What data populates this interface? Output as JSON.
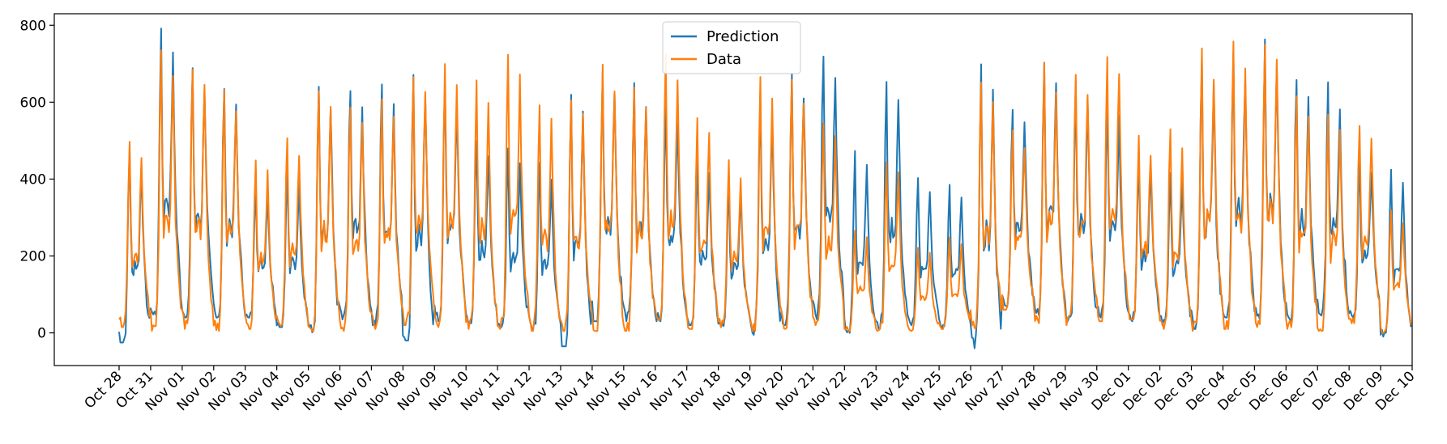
{
  "chart_data": {
    "type": "line",
    "title": "",
    "xlabel": "",
    "ylabel": "",
    "ylim": [
      -85,
      830
    ],
    "yticks": [
      0,
      200,
      400,
      600,
      800
    ],
    "grid": false,
    "legend_position": "top-center",
    "x_tick_labels": [
      "Oct 28",
      "Oct 31",
      "Nov 01",
      "Nov 02",
      "Nov 03",
      "Nov 04",
      "Nov 05",
      "Nov 06",
      "Nov 07",
      "Nov 08",
      "Nov 09",
      "Nov 10",
      "Nov 11",
      "Nov 12",
      "Nov 13",
      "Nov 14",
      "Nov 15",
      "Nov 16",
      "Nov 17",
      "Nov 18",
      "Nov 19",
      "Nov 20",
      "Nov 21",
      "Nov 22",
      "Nov 23",
      "Nov 24",
      "Nov 25",
      "Nov 26",
      "Nov 27",
      "Nov 28",
      "Nov 29",
      "Nov 30",
      "Dec 01",
      "Dec 02",
      "Dec 03",
      "Dec 04",
      "Dec 05",
      "Dec 06",
      "Dec 07",
      "Dec 08",
      "Dec 09",
      "Dec 10"
    ],
    "series": [
      {
        "name": "Prediction",
        "color": "#1f77b4",
        "daily_peaks": [
          480,
          790,
          690,
          640,
          390,
          430,
          630,
          640,
          650,
          670,
          640,
          500,
          480,
          440,
          630,
          690,
          640,
          600,
          450,
          390,
          620,
          670,
          730,
          470,
          660,
          400,
          380,
          690,
          590,
          710,
          650,
          600,
          460,
          420,
          710,
          720,
          755,
          670,
          640,
          450,
          420,
          560
        ],
        "daily_troughs": [
          -25,
          45,
          40,
          40,
          35,
          15,
          0,
          35,
          20,
          -20,
          30,
          25,
          15,
          5,
          -35,
          30,
          30,
          30,
          20,
          15,
          -5,
          20,
          35,
          0,
          10,
          20,
          10,
          -40,
          70,
          40,
          25,
          40,
          30,
          20,
          10,
          40,
          35,
          30,
          35,
          40,
          -10,
          0
        ]
      },
      {
        "name": "Data",
        "color": "#ff7f0e",
        "daily_peaks": [
          490,
          725,
          690,
          635,
          450,
          510,
          640,
          590,
          610,
          670,
          690,
          645,
          725,
          595,
          610,
          690,
          645,
          720,
          555,
          445,
          665,
          660,
          550,
          270,
          445,
          225,
          245,
          640,
          525,
          690,
          675,
          730,
          505,
          520,
          730,
          745,
          760,
          620,
          570,
          545,
          315,
          585
        ],
        "daily_troughs": [
          15,
          5,
          10,
          5,
          10,
          10,
          5,
          5,
          10,
          20,
          15,
          10,
          10,
          5,
          5,
          5,
          5,
          10,
          10,
          15,
          5,
          10,
          20,
          5,
          5,
          5,
          10,
          10,
          60,
          25,
          20,
          30,
          35,
          10,
          5,
          10,
          15,
          10,
          5,
          25,
          0,
          5
        ]
      }
    ]
  }
}
